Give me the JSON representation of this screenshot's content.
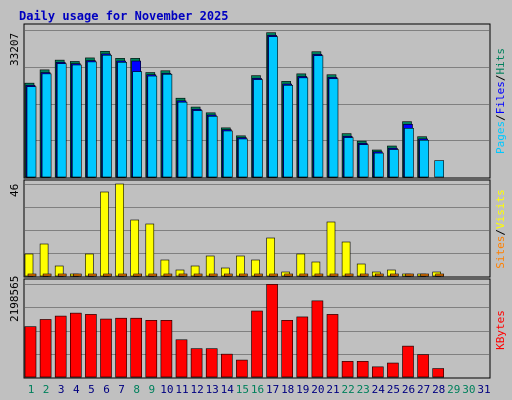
{
  "title": "Daily usage for November 2025",
  "colors": {
    "page_bg": "#c0c0c0",
    "panel_bg": "#c0c0c0",
    "title": "#0000c0",
    "grid": "#808080",
    "hits": "#00805c",
    "files": "#0000ff",
    "pages": "#00c8ff",
    "visits": "#ffff00",
    "sites": "#ff8000",
    "kbytes": "#ff0000",
    "weekday_label": "#000080",
    "weekend_label": "#00805c"
  },
  "chart_data": [
    {
      "type": "bar",
      "title": "Daily usage for November 2025",
      "categories": [
        "1",
        "2",
        "3",
        "4",
        "5",
        "6",
        "7",
        "8",
        "9",
        "10",
        "11",
        "12",
        "13",
        "14",
        "15",
        "16",
        "17",
        "18",
        "19",
        "20",
        "21",
        "22",
        "23",
        "24",
        "25",
        "26",
        "27",
        "28",
        "29",
        "30",
        "31"
      ],
      "weekend_days": [
        "1",
        "2",
        "8",
        "9",
        "15",
        "16",
        "22",
        "23",
        "29",
        "30"
      ],
      "ymax_label": "33207",
      "ylim": [
        0,
        33207
      ],
      "axis_label_parts": [
        {
          "text": "Pages",
          "color": "#00c8ff"
        },
        {
          "text": "/",
          "color": "#000000"
        },
        {
          "text": "Files",
          "color": "#0000ff"
        },
        {
          "text": "/",
          "color": "#000000"
        },
        {
          "text": "Hits",
          "color": "#00805c"
        }
      ],
      "series": [
        {
          "name": "Hits",
          "values": [
            21200,
            24200,
            26400,
            26100,
            26900,
            28400,
            26800,
            26800,
            23600,
            24000,
            17800,
            15800,
            14500,
            11100,
            9300,
            22900,
            32600,
            21600,
            23300,
            28300,
            23100,
            9800,
            8100,
            6100,
            7000,
            12500,
            9100,
            0,
            0,
            0,
            0
          ]
        },
        {
          "name": "Files",
          "values": [
            20700,
            23600,
            25900,
            25600,
            26300,
            27800,
            26200,
            26200,
            23100,
            23400,
            17200,
            15300,
            14000,
            10700,
            8900,
            22300,
            32000,
            21000,
            22700,
            27700,
            22500,
            9200,
            7600,
            5700,
            6500,
            11900,
            8600,
            0,
            0,
            0,
            0
          ]
        },
        {
          "name": "Pages",
          "values": [
            20400,
            23300,
            25600,
            25300,
            26000,
            27500,
            25900,
            23800,
            22800,
            23200,
            16900,
            15000,
            13700,
            10400,
            8600,
            22000,
            31700,
            20700,
            22400,
            27400,
            22200,
            8900,
            7300,
            5400,
            6200,
            11000,
            8300,
            3700,
            0,
            0,
            0
          ]
        }
      ]
    },
    {
      "type": "bar",
      "ymax_label": "46",
      "ylim": [
        0,
        46
      ],
      "axis_label_parts": [
        {
          "text": "Sites",
          "color": "#ff8000"
        },
        {
          "text": "/",
          "color": "#000000"
        },
        {
          "text": "Visits",
          "color": "#ffff00"
        }
      ],
      "series": [
        {
          "name": "Visits",
          "values": [
            11,
            16,
            5,
            1,
            11,
            42,
            46,
            28,
            26,
            8,
            3,
            5,
            10,
            4,
            10,
            8,
            19,
            2,
            11,
            7,
            27,
            17,
            6,
            2,
            3,
            1,
            1,
            2,
            0,
            0,
            0
          ]
        },
        {
          "name": "Sites",
          "values": [
            1,
            1,
            1,
            1,
            1,
            1,
            1,
            1,
            1,
            1,
            1,
            1,
            1,
            1,
            1,
            1,
            1,
            1,
            1,
            1,
            1,
            1,
            1,
            1,
            1,
            1,
            1,
            1,
            0,
            0,
            0
          ]
        }
      ]
    },
    {
      "type": "bar",
      "ymax_label": "2198565",
      "ylim": [
        0,
        2198565
      ],
      "axis_label_parts": [
        {
          "text": "KBytes",
          "color": "#ff0000"
        }
      ],
      "series": [
        {
          "name": "KBytes",
          "values": [
            1190000,
            1360000,
            1440000,
            1510000,
            1480000,
            1370000,
            1390000,
            1390000,
            1340000,
            1340000,
            880000,
            670000,
            670000,
            540000,
            400000,
            1560000,
            2190000,
            1340000,
            1420000,
            1800000,
            1480000,
            370000,
            370000,
            240000,
            330000,
            730000,
            530000,
            200000,
            0,
            0,
            0
          ]
        }
      ]
    }
  ]
}
